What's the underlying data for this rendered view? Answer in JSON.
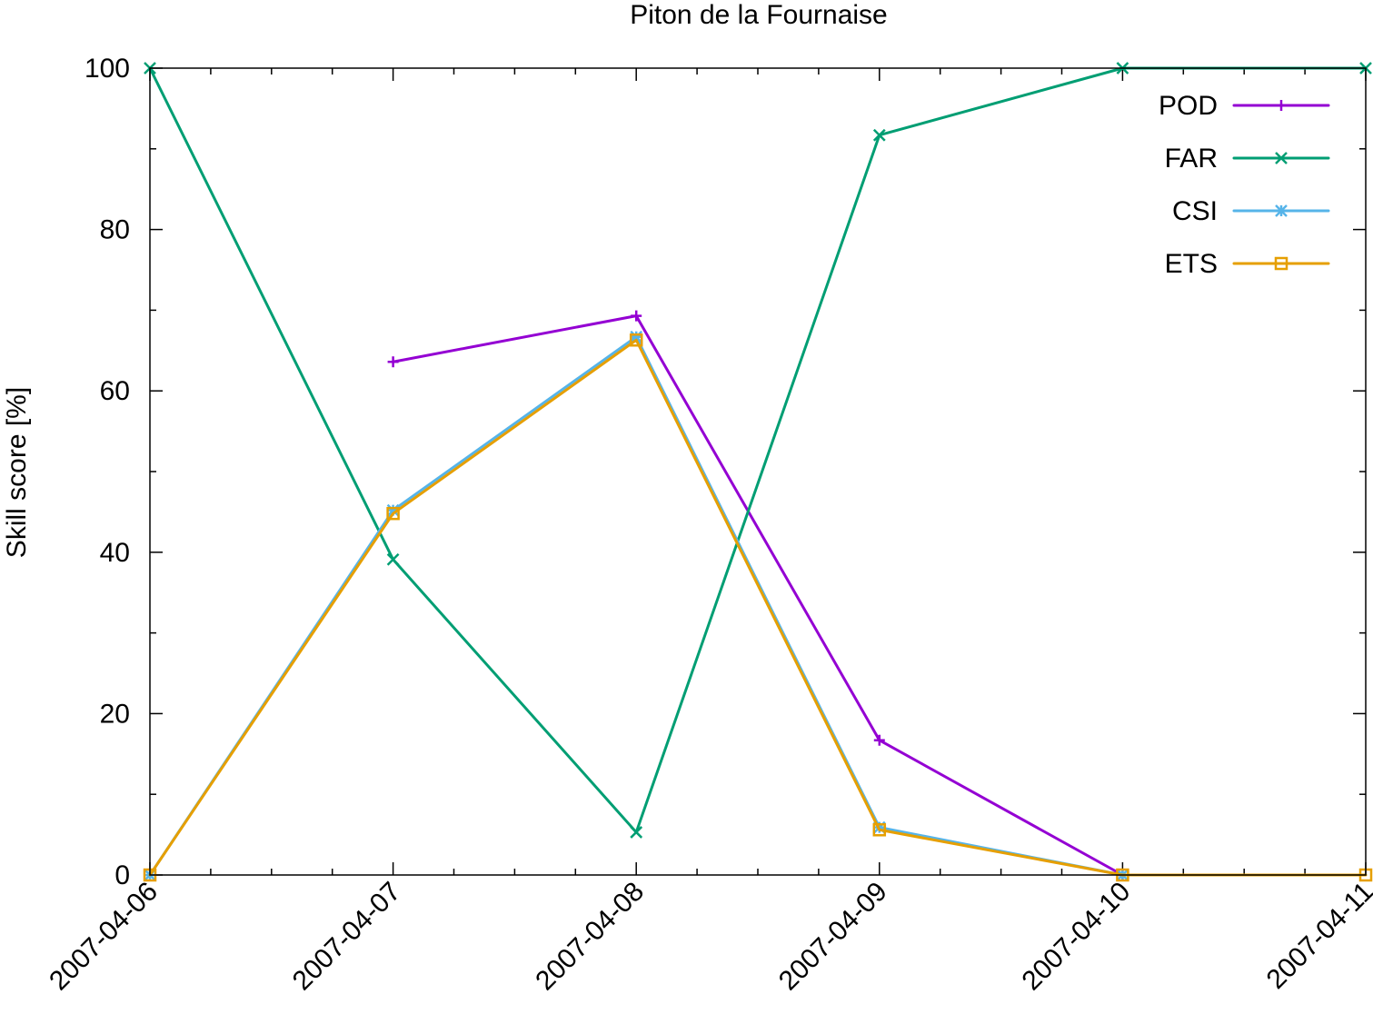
{
  "chart_data": {
    "type": "line",
    "title": "Piton de la Fournaise",
    "xlabel": "",
    "ylabel": "Skill score [%]",
    "x": [
      "2007-04-06",
      "2007-04-07",
      "2007-04-08",
      "2007-04-09",
      "2007-04-10",
      "2007-04-11"
    ],
    "ylim": [
      0,
      100
    ],
    "yticks": [
      "0",
      "20",
      "40",
      "60",
      "80",
      "100"
    ],
    "grid": false,
    "legend_position": "top-right",
    "series": [
      {
        "name": "POD",
        "color": "#9400d3",
        "marker": "plus",
        "values": [
          null,
          63.6,
          69.3,
          16.7,
          0,
          null
        ]
      },
      {
        "name": "FAR",
        "color": "#009e73",
        "marker": "cross",
        "values": [
          100,
          39.1,
          5.3,
          91.7,
          100,
          100
        ]
      },
      {
        "name": "CSI",
        "color": "#56b4e9",
        "marker": "star",
        "values": [
          0,
          45.2,
          66.7,
          5.9,
          0,
          null
        ]
      },
      {
        "name": "ETS",
        "color": "#e69f00",
        "marker": "square",
        "values": [
          0,
          44.8,
          66.3,
          5.6,
          0,
          0
        ]
      }
    ]
  }
}
